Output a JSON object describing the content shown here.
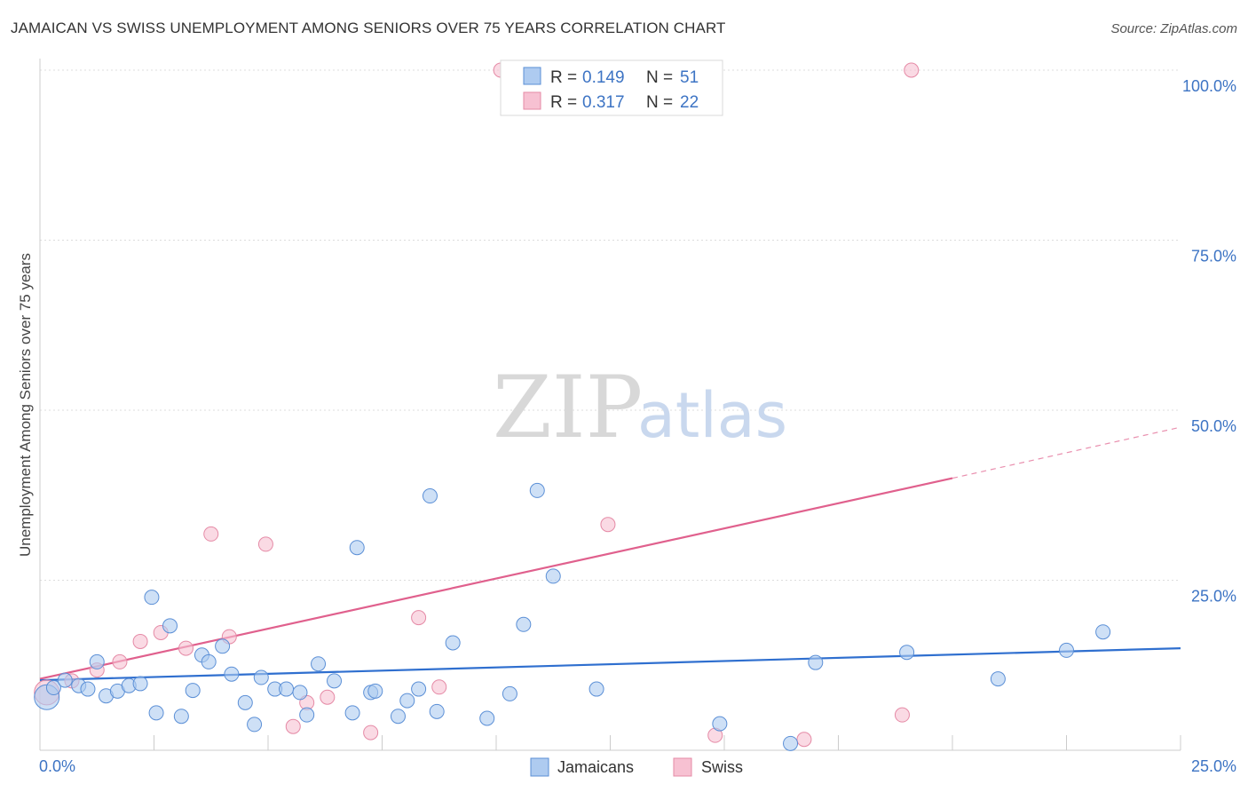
{
  "title": "JAMAICAN VS SWISS UNEMPLOYMENT AMONG SENIORS OVER 75 YEARS CORRELATION CHART",
  "source": "Source: ZipAtlas.com",
  "colors": {
    "jamaicans_fill": "#aecbf0",
    "jamaicans_stroke": "#5b8fd6",
    "jamaicans_line": "#2f6fcf",
    "swiss_fill": "#f7c1d2",
    "swiss_stroke": "#e58aa6",
    "swiss_line": "#e0608d",
    "tick_label": "#3d74c4",
    "grid": "#dddddd"
  },
  "legend": {
    "jamaicans": {
      "r_label": "R =",
      "r_value": "0.149",
      "n_label": "N =",
      "n_value": "51"
    },
    "swiss": {
      "r_label": "R =",
      "r_value": "0.317",
      "n_label": "N =",
      "n_value": "22"
    }
  },
  "watermark": {
    "zip": "ZIP",
    "atlas": "atlas"
  },
  "chart_data": {
    "type": "scatter",
    "title": "JAMAICAN VS SWISS UNEMPLOYMENT AMONG SENIORS OVER 75 YEARS CORRELATION CHART",
    "xlabel": "",
    "ylabel": "Unemployment Among Seniors over 75 years",
    "xlim": [
      0,
      25
    ],
    "ylim": [
      0,
      100
    ],
    "x_tick_labels": [
      "0.0%",
      "25.0%"
    ],
    "y_tick_labels": [
      "100.0%",
      "75.0%",
      "50.0%",
      "25.0%"
    ],
    "y_ticks": [
      100,
      75,
      50,
      25
    ],
    "legend_position": "top-center",
    "bottom_legend": [
      "Jamaicans",
      "Swiss"
    ],
    "series": [
      {
        "name": "Jamaicans",
        "points": [
          [
            0.15,
            7.8
          ],
          [
            0.3,
            9.2
          ],
          [
            0.55,
            10.3
          ],
          [
            0.85,
            9.5
          ],
          [
            1.05,
            9.0
          ],
          [
            1.25,
            13.0
          ],
          [
            1.45,
            8.0
          ],
          [
            1.7,
            8.7
          ],
          [
            1.95,
            9.5
          ],
          [
            2.2,
            9.8
          ],
          [
            2.45,
            22.5
          ],
          [
            2.55,
            5.5
          ],
          [
            2.85,
            18.3
          ],
          [
            3.1,
            5.0
          ],
          [
            3.35,
            8.8
          ],
          [
            3.55,
            14.0
          ],
          [
            3.7,
            13.0
          ],
          [
            4.0,
            15.3
          ],
          [
            4.2,
            11.2
          ],
          [
            4.5,
            7.0
          ],
          [
            4.7,
            3.8
          ],
          [
            4.85,
            10.7
          ],
          [
            5.15,
            9.0
          ],
          [
            5.4,
            9.0
          ],
          [
            5.7,
            8.5
          ],
          [
            5.85,
            5.2
          ],
          [
            6.1,
            12.7
          ],
          [
            6.45,
            10.2
          ],
          [
            6.85,
            5.5
          ],
          [
            6.95,
            29.8
          ],
          [
            7.25,
            8.5
          ],
          [
            7.35,
            8.7
          ],
          [
            7.85,
            5.0
          ],
          [
            8.05,
            7.3
          ],
          [
            8.3,
            9.0
          ],
          [
            8.55,
            37.4
          ],
          [
            8.7,
            5.7
          ],
          [
            9.05,
            15.8
          ],
          [
            9.8,
            4.7
          ],
          [
            10.3,
            8.3
          ],
          [
            10.6,
            18.5
          ],
          [
            10.9,
            38.2
          ],
          [
            11.25,
            25.6
          ],
          [
            12.2,
            9.0
          ],
          [
            14.9,
            3.9
          ],
          [
            16.45,
            1.0
          ],
          [
            17.0,
            12.9
          ],
          [
            19.0,
            14.4
          ],
          [
            21.0,
            10.5
          ],
          [
            22.5,
            14.7
          ],
          [
            23.3,
            17.4
          ]
        ],
        "trend": {
          "x": [
            0,
            25
          ],
          "y": [
            10.3,
            15.0
          ]
        }
      },
      {
        "name": "Swiss",
        "points": [
          [
            0.15,
            8.5
          ],
          [
            0.7,
            10.2
          ],
          [
            1.25,
            11.8
          ],
          [
            1.75,
            13.0
          ],
          [
            2.2,
            16.0
          ],
          [
            2.65,
            17.3
          ],
          [
            3.2,
            15.0
          ],
          [
            3.75,
            31.8
          ],
          [
            4.15,
            16.7
          ],
          [
            4.95,
            30.3
          ],
          [
            5.55,
            3.5
          ],
          [
            5.85,
            7.0
          ],
          [
            6.3,
            7.8
          ],
          [
            7.25,
            2.6
          ],
          [
            8.3,
            19.5
          ],
          [
            8.75,
            9.3
          ],
          [
            10.1,
            100.0
          ],
          [
            12.45,
            33.2
          ],
          [
            14.8,
            2.2
          ],
          [
            16.75,
            1.6
          ],
          [
            18.9,
            5.2
          ],
          [
            19.1,
            100.0
          ]
        ],
        "trend": {
          "x": [
            0,
            20
          ],
          "y": [
            10.5,
            40.0
          ]
        },
        "trend_dashed": {
          "x": [
            20,
            25
          ],
          "y": [
            40.0,
            47.5
          ]
        }
      }
    ]
  }
}
